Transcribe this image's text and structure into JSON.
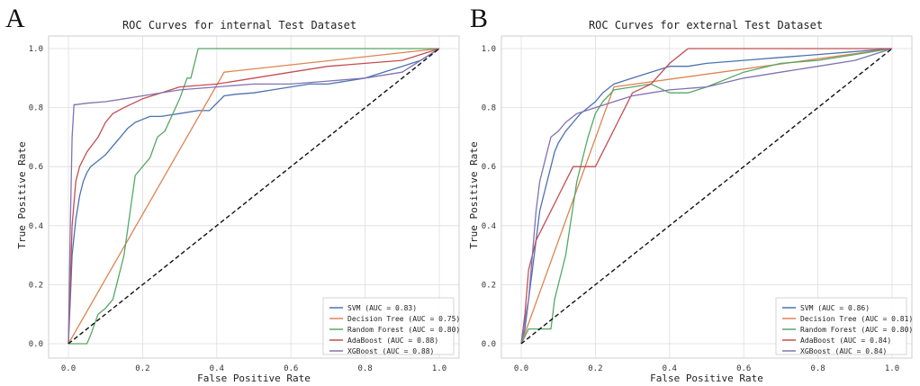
{
  "chart_data": [
    {
      "panel_label": "A",
      "type": "line",
      "title": "ROC Curves for internal Test Dataset",
      "xlabel": "False Positive Rate",
      "ylabel": "True Positive Rate",
      "xlim": [
        0,
        1
      ],
      "ylim": [
        0,
        1
      ],
      "xticks": [
        "0.0",
        "0.2",
        "0.4",
        "0.6",
        "0.8",
        "1.0"
      ],
      "yticks": [
        "0.0",
        "0.2",
        "0.4",
        "0.6",
        "0.8",
        "1.0"
      ],
      "grid": true,
      "legend_position": "lower-right",
      "series": [
        {
          "name": "SVM (AUC = 0.83)",
          "color": "#4c72b0",
          "x": [
            0,
            0.005,
            0.01,
            0.02,
            0.03,
            0.04,
            0.05,
            0.06,
            0.08,
            0.1,
            0.12,
            0.14,
            0.16,
            0.18,
            0.2,
            0.22,
            0.25,
            0.3,
            0.35,
            0.38,
            0.42,
            0.45,
            0.5,
            0.55,
            0.6,
            0.65,
            0.7,
            0.75,
            0.8,
            0.85,
            0.9,
            0.95,
            1.0
          ],
          "y": [
            0,
            0.15,
            0.3,
            0.42,
            0.5,
            0.55,
            0.58,
            0.6,
            0.62,
            0.64,
            0.67,
            0.7,
            0.73,
            0.75,
            0.76,
            0.77,
            0.77,
            0.78,
            0.79,
            0.79,
            0.84,
            0.845,
            0.85,
            0.86,
            0.87,
            0.88,
            0.88,
            0.89,
            0.9,
            0.92,
            0.94,
            0.96,
            1.0
          ]
        },
        {
          "name": "Decision Tree (AUC = 0.75)",
          "color": "#dd8452",
          "x": [
            0,
            0.42,
            1.0
          ],
          "y": [
            0,
            0.92,
            1.0
          ]
        },
        {
          "name": "Random Forest (AUC = 0.80)",
          "color": "#55a868",
          "x": [
            0,
            0.05,
            0.06,
            0.08,
            0.1,
            0.12,
            0.15,
            0.18,
            0.2,
            0.22,
            0.24,
            0.26,
            0.3,
            0.32,
            0.33,
            0.35,
            0.36,
            0.4,
            0.6,
            0.8,
            1.0
          ],
          "y": [
            0,
            0,
            0.03,
            0.1,
            0.12,
            0.15,
            0.3,
            0.57,
            0.6,
            0.63,
            0.7,
            0.72,
            0.83,
            0.9,
            0.9,
            1.0,
            1.0,
            1.0,
            1.0,
            1.0,
            1.0
          ]
        },
        {
          "name": "AdaBoost (AUC = 0.88)",
          "color": "#c44e52",
          "x": [
            0,
            0.005,
            0.01,
            0.02,
            0.03,
            0.05,
            0.08,
            0.1,
            0.12,
            0.15,
            0.2,
            0.25,
            0.3,
            0.4,
            0.5,
            0.6,
            0.7,
            0.8,
            0.9,
            0.95,
            1.0
          ],
          "y": [
            0,
            0.2,
            0.4,
            0.55,
            0.6,
            0.65,
            0.7,
            0.75,
            0.78,
            0.8,
            0.83,
            0.85,
            0.87,
            0.88,
            0.9,
            0.92,
            0.94,
            0.95,
            0.96,
            0.98,
            1.0
          ]
        },
        {
          "name": "XGBoost (AUC = 0.88)",
          "color": "#8172b2",
          "x": [
            0,
            0.005,
            0.01,
            0.015,
            0.02,
            0.05,
            0.1,
            0.15,
            0.2,
            0.3,
            0.4,
            0.5,
            0.6,
            0.7,
            0.8,
            0.9,
            0.95,
            1.0
          ],
          "y": [
            0,
            0.4,
            0.7,
            0.81,
            0.81,
            0.815,
            0.82,
            0.83,
            0.84,
            0.86,
            0.87,
            0.88,
            0.88,
            0.89,
            0.9,
            0.92,
            0.96,
            1.0
          ]
        },
        {
          "name": "chance",
          "color": "#111111",
          "dashed": true,
          "x": [
            0,
            1
          ],
          "y": [
            0,
            1
          ]
        }
      ]
    },
    {
      "panel_label": "B",
      "type": "line",
      "title": "ROC Curves for external Test Dataset",
      "xlabel": "False Positive Rate",
      "ylabel": "True Positive Rate",
      "xlim": [
        0,
        1
      ],
      "ylim": [
        0,
        1
      ],
      "xticks": [
        "0.0",
        "0.2",
        "0.4",
        "0.6",
        "0.8",
        "1.0"
      ],
      "yticks": [
        "0.0",
        "0.2",
        "0.4",
        "0.6",
        "0.8",
        "1.0"
      ],
      "grid": true,
      "legend_position": "lower-right",
      "series": [
        {
          "name": "SVM (AUC = 0.86)",
          "color": "#4c72b0",
          "x": [
            0,
            0.01,
            0.02,
            0.03,
            0.04,
            0.05,
            0.06,
            0.07,
            0.08,
            0.09,
            0.1,
            0.12,
            0.14,
            0.16,
            0.18,
            0.2,
            0.22,
            0.25,
            0.3,
            0.35,
            0.4,
            0.45,
            0.5,
            0.6,
            0.7,
            0.8,
            0.9,
            1.0
          ],
          "y": [
            0,
            0.05,
            0.15,
            0.25,
            0.35,
            0.45,
            0.5,
            0.55,
            0.6,
            0.65,
            0.68,
            0.72,
            0.75,
            0.78,
            0.8,
            0.82,
            0.85,
            0.88,
            0.9,
            0.92,
            0.94,
            0.94,
            0.95,
            0.96,
            0.97,
            0.98,
            0.99,
            1.0
          ]
        },
        {
          "name": "Decision Tree (AUC = 0.81)",
          "color": "#dd8452",
          "x": [
            0,
            0.25,
            1.0
          ],
          "y": [
            0,
            0.87,
            1.0
          ]
        },
        {
          "name": "Random Forest (AUC = 0.80)",
          "color": "#55a868",
          "x": [
            0,
            0.02,
            0.05,
            0.08,
            0.09,
            0.1,
            0.12,
            0.15,
            0.18,
            0.2,
            0.22,
            0.25,
            0.3,
            0.35,
            0.4,
            0.45,
            0.5,
            0.6,
            0.7,
            0.8,
            0.9,
            1.0
          ],
          "y": [
            0,
            0.05,
            0.05,
            0.05,
            0.15,
            0.2,
            0.3,
            0.55,
            0.7,
            0.78,
            0.82,
            0.86,
            0.87,
            0.88,
            0.85,
            0.85,
            0.87,
            0.92,
            0.95,
            0.96,
            0.98,
            1.0
          ]
        },
        {
          "name": "AdaBoost (AUC = 0.84)",
          "color": "#c44e52",
          "x": [
            0,
            0.01,
            0.02,
            0.04,
            0.06,
            0.08,
            0.1,
            0.12,
            0.14,
            0.16,
            0.2,
            0.22,
            0.24,
            0.26,
            0.28,
            0.3,
            0.35,
            0.4,
            0.45,
            0.5,
            0.6,
            0.7,
            0.8,
            0.9,
            1.0
          ],
          "y": [
            0,
            0.1,
            0.25,
            0.35,
            0.4,
            0.45,
            0.5,
            0.55,
            0.6,
            0.6,
            0.6,
            0.65,
            0.7,
            0.75,
            0.8,
            0.85,
            0.88,
            0.95,
            1.0,
            1.0,
            1.0,
            1.0,
            1.0,
            1.0,
            1.0
          ]
        },
        {
          "name": "XGBoost (AUC = 0.84)",
          "color": "#8172b2",
          "x": [
            0,
            0.01,
            0.02,
            0.03,
            0.04,
            0.05,
            0.06,
            0.07,
            0.08,
            0.1,
            0.12,
            0.15,
            0.2,
            0.25,
            0.3,
            0.35,
            0.4,
            0.5,
            0.6,
            0.7,
            0.8,
            0.9,
            1.0
          ],
          "y": [
            0,
            0.08,
            0.15,
            0.3,
            0.45,
            0.55,
            0.6,
            0.65,
            0.7,
            0.72,
            0.75,
            0.78,
            0.8,
            0.82,
            0.84,
            0.85,
            0.86,
            0.87,
            0.9,
            0.92,
            0.94,
            0.96,
            1.0
          ]
        },
        {
          "name": "chance",
          "color": "#111111",
          "dashed": true,
          "x": [
            0,
            1
          ],
          "y": [
            0,
            1
          ]
        }
      ]
    }
  ]
}
